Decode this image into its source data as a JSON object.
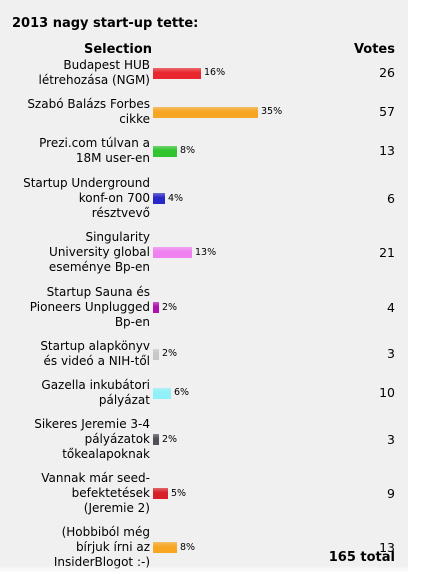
{
  "poll": {
    "title": "2013 nagy start-up tette:",
    "selection_header": "Selection",
    "votes_header": "Votes",
    "total_label": "165 total"
  },
  "chart_data": {
    "type": "bar",
    "orientation": "horizontal",
    "title": "2013 nagy start-up tette:",
    "categories": [
      "Budapest HUB létrehozása (NGM)",
      "Szabó Balázs Forbes cikke",
      "Prezi.com túlvan a 18M user-en",
      "Startup Underground konf-on 700 résztvevő",
      "Singularity University global eseménye Bp-en",
      "Startup Sauna és Pioneers Unplugged Bp-en",
      "Startup alapkönyv és videó a NIH-től",
      "Gazella inkubátori pályázat",
      "Sikeres Jeremie 3-4 pályázatok tőkealapoknak",
      "Vannak már seed-befektetések (Jeremie 2)",
      "(Hobbiból még bírjuk írni az InsiderBlogot :-)"
    ],
    "label_lines": [
      [
        "Budapest HUB",
        "létrehozása (NGM)"
      ],
      [
        "Szabó Balázs Forbes",
        "cikke"
      ],
      [
        "Prezi.com túlvan a",
        "18M user-en"
      ],
      [
        "Startup Underground",
        "konf-on 700",
        "résztvevő"
      ],
      [
        "Singularity",
        "University global",
        "eseménye Bp-en"
      ],
      [
        "Startup Sauna és",
        "Pioneers Unplugged",
        "Bp-en"
      ],
      [
        "Startup alapkönyv",
        "és videó a NIH-től"
      ],
      [
        "Gazella inkubátori",
        "pályázat"
      ],
      [
        "Sikeres Jeremie 3-4",
        "pályázatok",
        "tőkealapoknak"
      ],
      [
        "Vannak már seed-",
        "befektetések",
        "(Jeremie 2)"
      ],
      [
        "(Hobbiból még",
        "bírjuk írni az",
        "InsiderBlogot :-)"
      ]
    ],
    "votes": [
      26,
      57,
      13,
      6,
      21,
      4,
      3,
      10,
      3,
      9,
      13
    ],
    "percent_labels": [
      "16%",
      "35%",
      "8%",
      "4%",
      "13%",
      "2%",
      "2%",
      "6%",
      "2%",
      "5%",
      "8%"
    ],
    "percents": [
      16,
      35,
      8,
      4,
      13,
      2,
      2,
      6,
      2,
      5,
      8
    ],
    "colors": [
      "#e8282e",
      "#f6a623",
      "#2fc52f",
      "#2828c8",
      "#f080f0",
      "#b010b0",
      "#c8c8c8",
      "#90f0f8",
      "#505058",
      "#d82028",
      "#f6a623"
    ],
    "total": 165
  }
}
